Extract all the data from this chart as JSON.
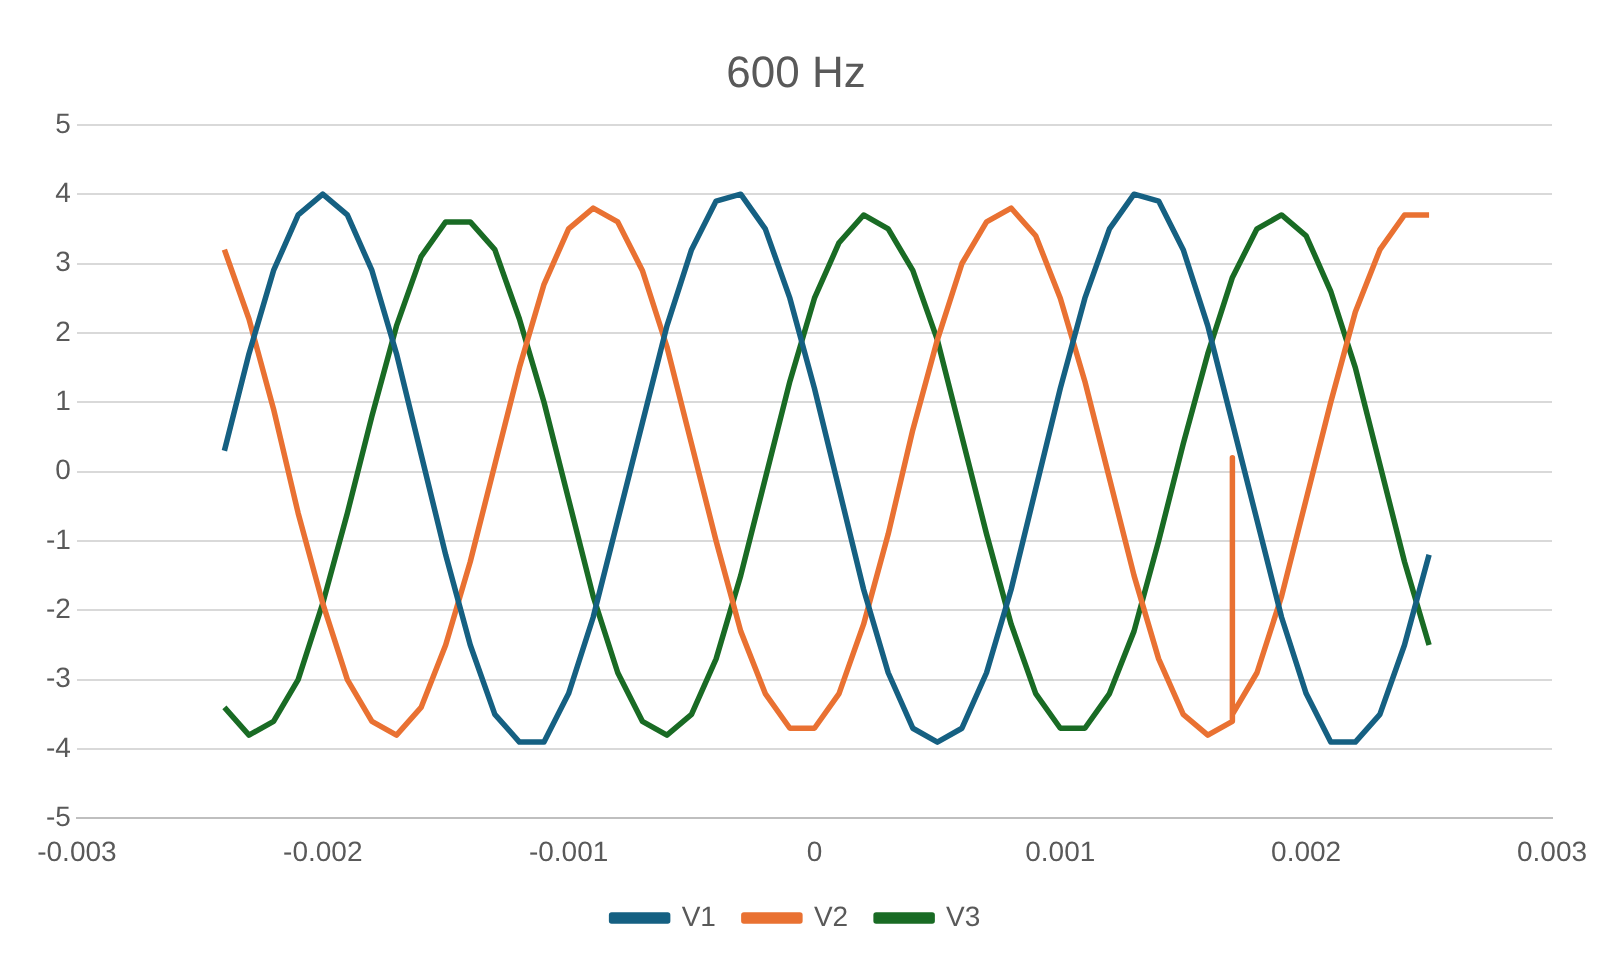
{
  "chart_data": {
    "type": "line",
    "title": "600 Hz",
    "x": [
      -0.0024,
      -0.0023,
      -0.0022,
      -0.0021,
      -0.002,
      -0.0019,
      -0.0018,
      -0.0017,
      -0.0016,
      -0.0015,
      -0.0014,
      -0.0013,
      -0.0012,
      -0.0011,
      -0.001,
      -0.0009,
      -0.0008,
      -0.0007,
      -0.0006,
      -0.0005,
      -0.0004,
      -0.0003,
      -0.0002,
      -0.0001,
      0,
      0.0001,
      0.0002,
      0.0003,
      0.0004,
      0.0005,
      0.0006,
      0.0007,
      0.0008,
      0.0009,
      0.001,
      0.0011,
      0.0012,
      0.0013,
      0.0014,
      0.0015,
      0.0016,
      0.0017,
      0.0018,
      0.0019,
      0.002,
      0.0021,
      0.0022,
      0.0023,
      0.0024,
      0.0025
    ],
    "series": [
      {
        "name": "V1",
        "color": "#156082",
        "values": [
          0.3,
          1.7,
          2.9,
          3.7,
          4.0,
          3.7,
          2.9,
          1.7,
          0.25,
          -1.2,
          -2.5,
          -3.5,
          -3.9,
          -3.9,
          -3.2,
          -2.1,
          -0.7,
          0.7,
          2.1,
          3.2,
          3.9,
          4.0,
          3.5,
          2.5,
          1.2,
          -0.25,
          -1.7,
          -2.9,
          -3.7,
          -3.9,
          -3.7,
          -2.9,
          -1.7,
          -0.25,
          1.2,
          2.5,
          3.5,
          4.0,
          3.9,
          3.2,
          2.1,
          0.7,
          -0.7,
          -2.1,
          -3.2,
          -3.9,
          -3.9,
          -3.5,
          -2.5,
          -1.2
        ]
      },
      {
        "name": "V2",
        "color": "#e97132",
        "x": [
          -0.0024,
          -0.0023,
          -0.0022,
          -0.0021,
          -0.002,
          -0.0019,
          -0.0018,
          -0.0017,
          -0.0016,
          -0.0015,
          -0.0014,
          -0.0013,
          -0.0012,
          -0.0011,
          -0.001,
          -0.0009,
          -0.0008,
          -0.0007,
          -0.0006,
          -0.0005,
          -0.0004,
          -0.0003,
          -0.0002,
          -0.0001,
          0,
          0.0001,
          0.0002,
          0.0003,
          0.0004,
          0.0005,
          0.0006,
          0.0007,
          0.0008,
          0.0009,
          0.001,
          0.0011,
          0.0012,
          0.0013,
          0.0014,
          0.0015,
          0.0016,
          0.0017,
          0.0017,
          0.0017,
          0.0018,
          0.0019,
          0.002,
          0.0021,
          0.0022,
          0.0023,
          0.0024,
          0.0025
        ],
        "values": [
          3.2,
          2.2,
          0.9,
          -0.6,
          -1.9,
          -3.0,
          -3.6,
          -3.8,
          -3.4,
          -2.5,
          -1.3,
          0.1,
          1.5,
          2.7,
          3.5,
          3.8,
          3.6,
          2.9,
          1.8,
          0.4,
          -1.0,
          -2.3,
          -3.2,
          -3.7,
          -3.7,
          -3.2,
          -2.2,
          -0.9,
          0.6,
          1.9,
          3.0,
          3.6,
          3.8,
          3.4,
          2.5,
          1.3,
          -0.1,
          -1.5,
          -2.7,
          -3.5,
          -3.8,
          -3.6,
          0.2,
          -3.5,
          -2.9,
          -1.8,
          -0.4,
          1.0,
          2.3,
          3.2,
          3.7,
          3.7
        ]
      },
      {
        "name": "V3",
        "color": "#196b24",
        "values": [
          -3.4,
          -3.8,
          -3.6,
          -3.0,
          -1.9,
          -0.6,
          0.8,
          2.1,
          3.1,
          3.6,
          3.6,
          3.2,
          2.2,
          1.0,
          -0.4,
          -1.8,
          -2.9,
          -3.6,
          -3.8,
          -3.5,
          -2.7,
          -1.5,
          -0.1,
          1.3,
          2.5,
          3.3,
          3.7,
          3.5,
          2.9,
          1.9,
          0.5,
          -0.9,
          -2.2,
          -3.2,
          -3.7,
          -3.7,
          -3.2,
          -2.3,
          -1.0,
          0.4,
          1.7,
          2.8,
          3.5,
          3.7,
          3.4,
          2.6,
          1.5,
          0.1,
          -1.3,
          -2.5
        ]
      }
    ],
    "xlim": [
      -0.003,
      0.003
    ],
    "xticks": [
      -0.003,
      -0.002,
      -0.001,
      0,
      0.001,
      0.002,
      0.003
    ],
    "ylim": [
      -5,
      5
    ],
    "yticks": [
      -5,
      -4,
      -3,
      -2,
      -1,
      0,
      1,
      2,
      3,
      4,
      5
    ],
    "grid": "y",
    "legend": "bottom",
    "marker": "none",
    "line_style": "solid"
  }
}
